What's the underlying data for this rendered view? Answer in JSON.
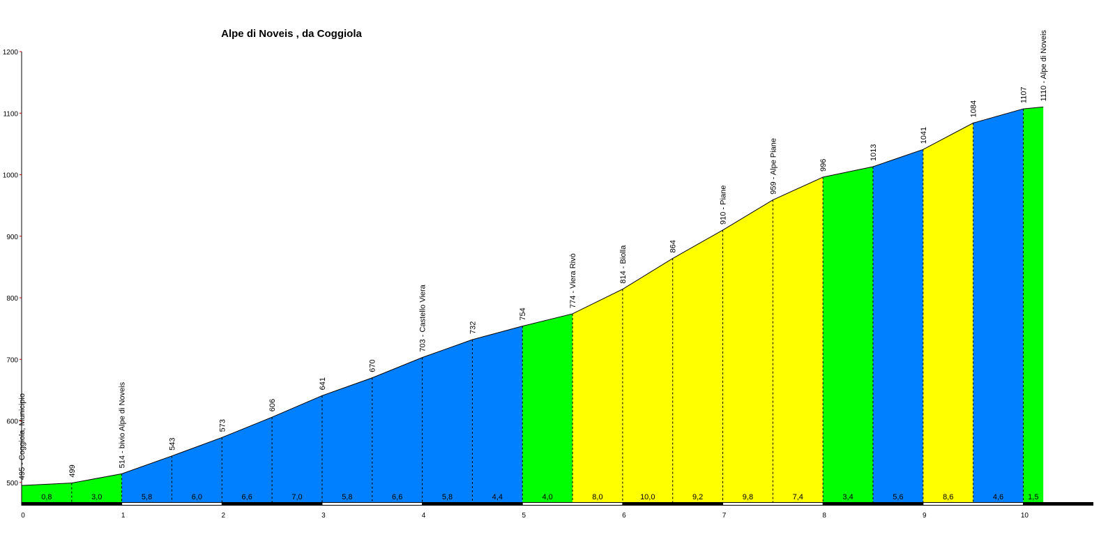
{
  "chart_data": {
    "type": "area",
    "title": "Alpe di Noveis , da Coggiola",
    "x": [
      0,
      0.5,
      1,
      1.5,
      2,
      2.5,
      3,
      3.5,
      4,
      4.5,
      5,
      5.5,
      6,
      6.5,
      7,
      7.5,
      8,
      8.5,
      9,
      9.5,
      10,
      10.2
    ],
    "values": [
      495,
      499,
      514,
      543,
      573,
      606,
      641,
      670,
      703,
      732,
      754,
      774,
      814,
      864,
      910,
      959,
      996,
      1013,
      1041,
      1084,
      1107,
      1110
    ],
    "value_labels": [
      "495 - Coggiola, Municipio",
      "499",
      "514 - bivio Alpe di Noveis",
      "543",
      "573",
      "606",
      "641",
      "670",
      "703 - Castello Viera",
      "732",
      "754",
      "774 - Viera Rivò",
      "814 - Biolla",
      "864",
      "910 - Piane",
      "959 - Alpe Piane",
      "996",
      "1013",
      "1041",
      "1084",
      "1107",
      "1110 - Alpe di Noveis"
    ],
    "gradients": [
      0.8,
      3.0,
      5.8,
      6.0,
      6.6,
      7.0,
      5.8,
      6.6,
      5.8,
      4.4,
      4.0,
      8.0,
      10.0,
      9.2,
      9.8,
      7.4,
      3.4,
      5.6,
      8.6,
      4.6,
      1.5
    ],
    "gradient_labels": [
      "0,8",
      "3,0",
      "5,8",
      "6,0",
      "6,6",
      "7,0",
      "5,8",
      "6,6",
      "5,8",
      "4,4",
      "4,0",
      "8,0",
      "10,0",
      "9,2",
      "9,8",
      "7,4",
      "3,4",
      "5,6",
      "8,6",
      "4,6",
      "1,5"
    ],
    "segment_colors": [
      "#00ff00",
      "#00ff00",
      "#0080ff",
      "#0080ff",
      "#0080ff",
      "#0080ff",
      "#0080ff",
      "#0080ff",
      "#0080ff",
      "#0080ff",
      "#00ff00",
      "#ffff00",
      "#ffff00",
      "#ffff00",
      "#ffff00",
      "#ffff00",
      "#00ff00",
      "#0080ff",
      "#ffff00",
      "#0080ff",
      "#00ff00"
    ],
    "xlim": [
      0,
      10.7
    ],
    "xticks": [
      0,
      1,
      2,
      3,
      4,
      5,
      6,
      7,
      8,
      9,
      10
    ],
    "ylim": [
      468,
      1200
    ],
    "yticks": [
      500,
      600,
      700,
      800,
      900,
      1000,
      1100,
      1200
    ]
  }
}
